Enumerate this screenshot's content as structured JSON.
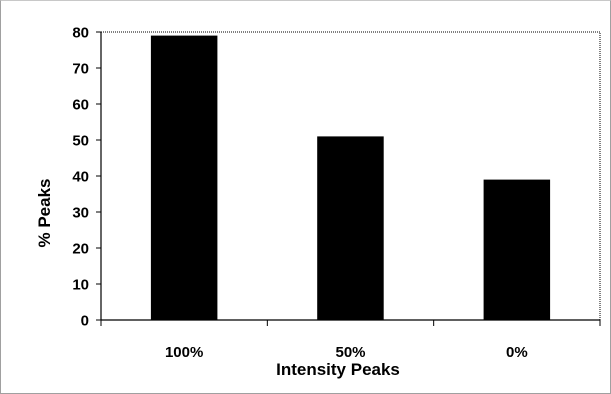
{
  "chart_data": {
    "type": "bar",
    "categories": [
      "100%",
      "50%",
      "0%"
    ],
    "values": [
      79,
      51,
      39
    ],
    "xlabel": "Intensity Peaks",
    "ylabel": "% Peaks",
    "ylim": [
      0,
      80
    ],
    "yticks": [
      0,
      10,
      20,
      30,
      40,
      50,
      60,
      70,
      80
    ],
    "grid": false,
    "legend": "none",
    "bar_color": "#000000"
  }
}
